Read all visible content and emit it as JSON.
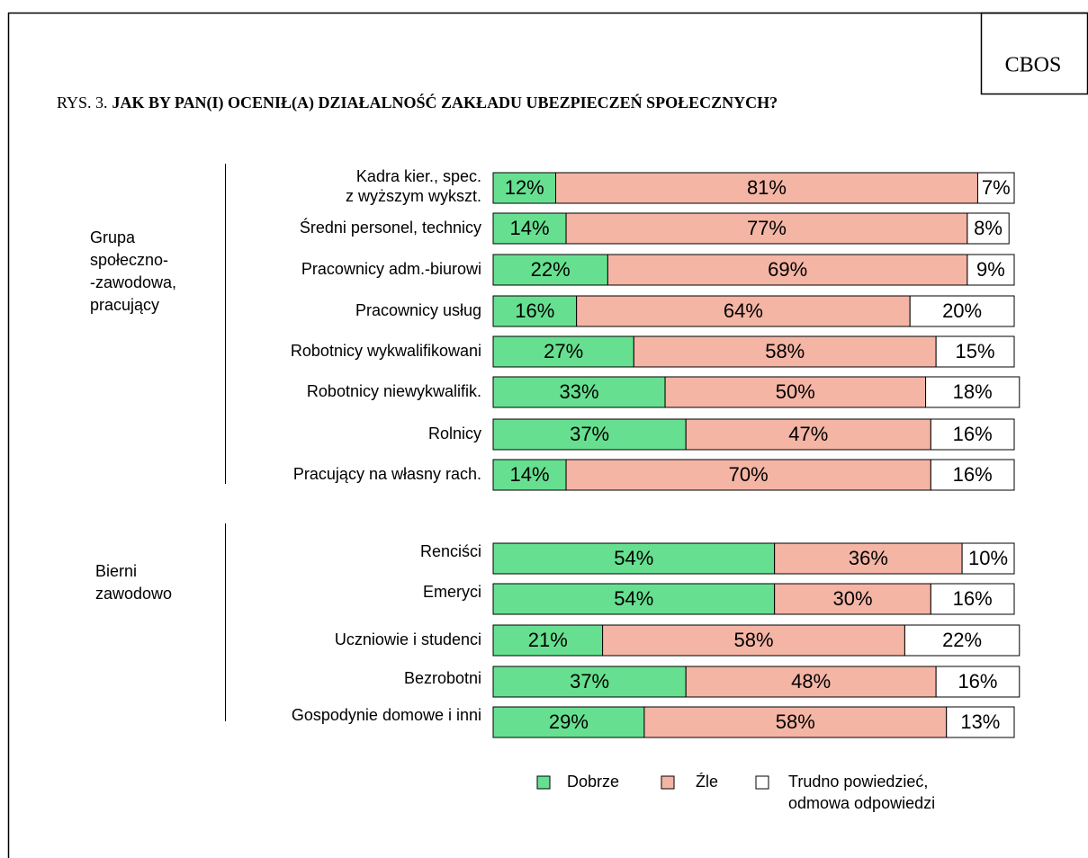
{
  "chart_data": {
    "type": "stacked-bar-horizontal",
    "source": "CBOS",
    "figure_label": "RYS. 3.",
    "title": "JAK BY PAN(I) OCENIŁ(A) DZIAŁALNOŚĆ ZAKŁADU UBEZPIECZEŃ SPOŁECZNYCH?",
    "groups": [
      [
        "Grupa",
        "społeczno-",
        "-zawodowa,",
        "pracujący"
      ],
      [
        "Bierni",
        "zawodowo"
      ]
    ],
    "categories": [
      [
        "Kadra kier., spec.",
        "z wyższym wykszt."
      ],
      "Średni personel, technicy",
      "Pracownicy adm.-biurowi",
      "Pracownicy usług",
      "Robotnicy wykwalifikowani",
      "Robotnicy niewykwalifik.",
      "Rolnicy",
      "Pracujący na własny rach.",
      "Renciści",
      "Emeryci",
      "Uczniowie i studenci",
      "Bezrobotni",
      "Gospodynie domowe i inni"
    ],
    "xlim": [
      0,
      100
    ],
    "series": [
      {
        "name": "Dobrze",
        "color": "#66e090",
        "values": [
          12,
          14,
          22,
          16,
          27,
          33,
          37,
          14,
          54,
          54,
          21,
          37,
          29
        ],
        "value_labels": [
          "12%",
          "14%",
          "22%",
          "16%",
          "27%",
          "33%",
          "37%",
          "14%",
          "54%",
          "54%",
          "21%",
          "37%",
          "29%"
        ]
      },
      {
        "name": "Źle",
        "color": "#f4b5a5",
        "values": [
          81,
          77,
          69,
          64,
          58,
          50,
          47,
          70,
          36,
          30,
          58,
          48,
          58
        ],
        "value_labels": [
          "81%",
          "77%",
          "69%",
          "64%",
          "58%",
          "50%",
          "47%",
          "70%",
          "36%",
          "30%",
          "58%",
          "48%",
          "58%"
        ]
      },
      {
        "name": [
          "Trudno powiedzieć,",
          "odmowa odpowiedzi"
        ],
        "color": "#ffffff",
        "values": [
          7,
          8,
          9,
          20,
          15,
          18,
          16,
          16,
          10,
          16,
          22,
          16,
          13
        ],
        "value_labels": [
          "7%",
          "8%",
          "9%",
          "20%",
          "15%",
          "18%",
          "16%",
          "16%",
          "10%",
          "16%",
          "22%",
          "16%",
          "13%"
        ]
      }
    ]
  }
}
